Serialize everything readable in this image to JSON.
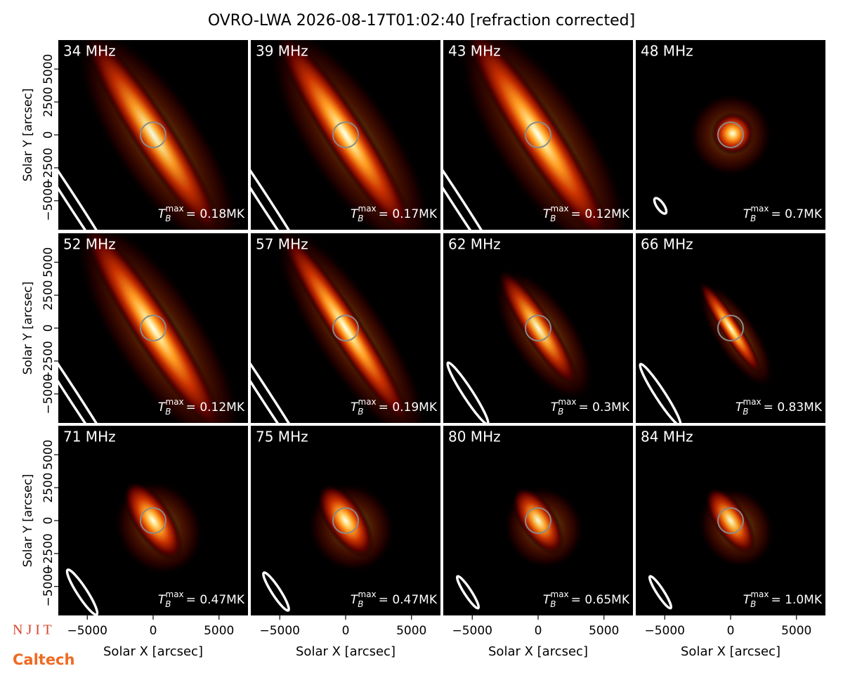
{
  "title": "OVRO-LWA 2026-08-17T01:02:40 [refraction corrected]",
  "logos": [
    "N J I T",
    "Caltech"
  ],
  "tb_symbol": {
    "base": "T",
    "sub": "B",
    "sup": "max"
  },
  "chart_data": [
    {
      "type": "image",
      "label": "34 MHz",
      "annotation": "= 0.18MK",
      "xlim": [
        -7200,
        7200
      ],
      "ylim": [
        -7200,
        7200
      ],
      "ylabel": "Solar Y [arcsec]",
      "yticks": [
        {
          "value": -5000,
          "label": "−5000"
        },
        {
          "value": -2500,
          "label": "−2500"
        },
        0,
        2500,
        5000
      ]
    },
    {
      "type": "image",
      "label": "39 MHz",
      "annotation": "= 0.17MK",
      "xlim": [
        -7200,
        7200
      ],
      "ylim": [
        -7200,
        7200
      ]
    },
    {
      "type": "image",
      "label": "43 MHz",
      "annotation": "= 0.12MK",
      "xlim": [
        -7200,
        7200
      ],
      "ylim": [
        -7200,
        7200
      ]
    },
    {
      "type": "image",
      "label": "48 MHz",
      "annotation": "= 0.7MK",
      "xlim": [
        -7200,
        7200
      ],
      "ylim": [
        -7200,
        7200
      ]
    },
    {
      "type": "image",
      "label": "52 MHz",
      "annotation": "= 0.12MK",
      "xlim": [
        -7200,
        7200
      ],
      "ylim": [
        -7200,
        7200
      ],
      "ylabel": "Solar Y [arcsec]",
      "yticks": [
        {
          "value": -5000,
          "label": "−5000"
        },
        {
          "value": -2500,
          "label": "−2500"
        },
        0,
        2500,
        5000
      ]
    },
    {
      "type": "image",
      "label": "57 MHz",
      "annotation": "= 0.19MK",
      "xlim": [
        -7200,
        7200
      ],
      "ylim": [
        -7200,
        7200
      ]
    },
    {
      "type": "image",
      "label": "62 MHz",
      "annotation": "= 0.3MK",
      "xlim": [
        -7200,
        7200
      ],
      "ylim": [
        -7200,
        7200
      ]
    },
    {
      "type": "image",
      "label": "66 MHz",
      "annotation": "= 0.83MK",
      "xlim": [
        -7200,
        7200
      ],
      "ylim": [
        -7200,
        7200
      ]
    },
    {
      "type": "image",
      "label": "71 MHz",
      "annotation": "= 0.47MK",
      "xlim": [
        -7200,
        7200
      ],
      "ylim": [
        -7200,
        7200
      ],
      "ylabel": "Solar Y [arcsec]",
      "yticks": [
        {
          "value": -5000,
          "label": "−5000"
        },
        {
          "value": -2500,
          "label": "−2500"
        },
        0,
        2500,
        5000
      ],
      "xlabel": "Solar X [arcsec]",
      "xticks": [
        {
          "value": -5000,
          "label": "−5000"
        },
        0,
        5000
      ]
    },
    {
      "type": "image",
      "label": "75 MHz",
      "annotation": "= 0.47MK",
      "xlim": [
        -7200,
        7200
      ],
      "ylim": [
        -7200,
        7200
      ],
      "xlabel": "Solar X [arcsec]",
      "xticks": [
        {
          "value": -5000,
          "label": "−5000"
        },
        0,
        5000
      ]
    },
    {
      "type": "image",
      "label": "80 MHz",
      "annotation": "= 0.65MK",
      "xlim": [
        -7200,
        7200
      ],
      "ylim": [
        -7200,
        7200
      ],
      "xlabel": "Solar X [arcsec]",
      "xticks": [
        {
          "value": -5000,
          "label": "−5000"
        },
        0,
        5000
      ]
    },
    {
      "type": "image",
      "label": "84 MHz",
      "annotation": "= 1.0MK",
      "xlim": [
        -7200,
        7200
      ],
      "ylim": [
        -7200,
        7200
      ],
      "xlabel": "Solar X [arcsec]",
      "xticks": [
        {
          "value": -5000,
          "label": "−5000"
        },
        0,
        5000
      ]
    }
  ]
}
